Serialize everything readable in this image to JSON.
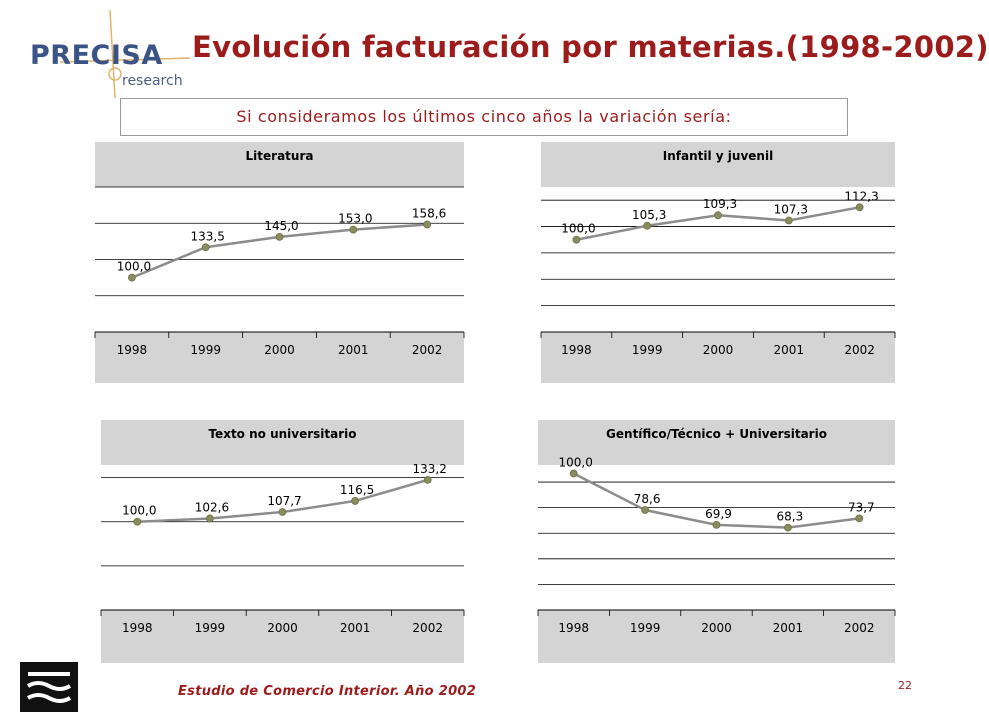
{
  "header": {
    "logo_text": "PRECISA",
    "logo_sub": "research",
    "title": "Evolución facturación por materias.(1998-2002)",
    "subtitle": "Si consideramos los últimos cinco años la variación sería:"
  },
  "footer": {
    "source": "Estudio de Comercio Interior. Año 2002",
    "page": "22"
  },
  "colors": {
    "title": "#9c1b1b",
    "logo": "#3a5487",
    "panel_bg": "#d4d4d4",
    "plot_bg": "#ffffff",
    "line": "#8c8c8c",
    "marker": "#8a8c5c"
  },
  "chart_data": [
    {
      "type": "line",
      "title": "Literatura",
      "categories": [
        "1998",
        "1999",
        "2000",
        "2001",
        "2002"
      ],
      "values": [
        100.0,
        133.5,
        145.0,
        153.0,
        158.6
      ],
      "labels": [
        "100,0",
        "133,5",
        "145,0",
        "153,0",
        "158,6"
      ],
      "ylim": [
        40,
        200
      ],
      "gridlines": [
        40,
        80,
        120,
        160,
        200
      ]
    },
    {
      "type": "line",
      "title": "Infantil y juvenil",
      "categories": [
        "1998",
        "1999",
        "2000",
        "2001",
        "2002"
      ],
      "values": [
        100.0,
        105.3,
        109.3,
        107.3,
        112.3
      ],
      "labels": [
        "100,0",
        "105,3",
        "109,3",
        "107,3",
        "112,3"
      ],
      "ylim": [
        65,
        120
      ],
      "gridlines": [
        65,
        75,
        85,
        95,
        105,
        115
      ]
    },
    {
      "type": "line",
      "title": "Texto no universitario",
      "categories": [
        "1998",
        "1999",
        "2000",
        "2001",
        "2002"
      ],
      "values": [
        100.0,
        102.6,
        107.7,
        116.5,
        133.2
      ],
      "labels": [
        "100,0",
        "102,6",
        "107,7",
        "116,5",
        "133,2"
      ],
      "ylim": [
        30,
        145
      ],
      "gridlines": [
        30,
        65,
        100,
        135
      ]
    },
    {
      "type": "line",
      "title": "Gentífico/Técnico + Universitario",
      "categories": [
        "1998",
        "1999",
        "2000",
        "2001",
        "2002"
      ],
      "values": [
        100.0,
        78.6,
        69.9,
        68.3,
        73.7
      ],
      "labels": [
        "100,0",
        "78,6",
        "69,9",
        "68,3",
        "73,7"
      ],
      "ylim": [
        20,
        105
      ],
      "gridlines": [
        20,
        35,
        50,
        65,
        80,
        95
      ]
    }
  ]
}
